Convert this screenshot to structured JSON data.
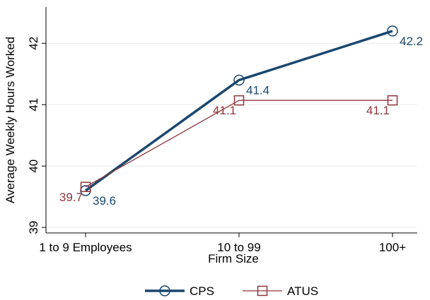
{
  "chart_data": {
    "type": "line",
    "x_label": "Firm Size",
    "y_label": "Average Weekly Hours Worked",
    "categories": [
      "1 to 9 Employees",
      "10 to 99",
      "100+"
    ],
    "series": [
      {
        "name": "CPS",
        "color": "#1a476f",
        "values": [
          39.6,
          41.4,
          42.2
        ]
      },
      {
        "name": "ATUS",
        "color": "#90353b",
        "values": [
          39.66,
          41.07,
          41.07
        ],
        "value_labels": [
          "39.7",
          "41.1",
          "41.1"
        ]
      }
    ],
    "ylim": [
      38.91,
      42.59
    ],
    "yticks": [
      39,
      40,
      41,
      42
    ],
    "grid": true
  }
}
